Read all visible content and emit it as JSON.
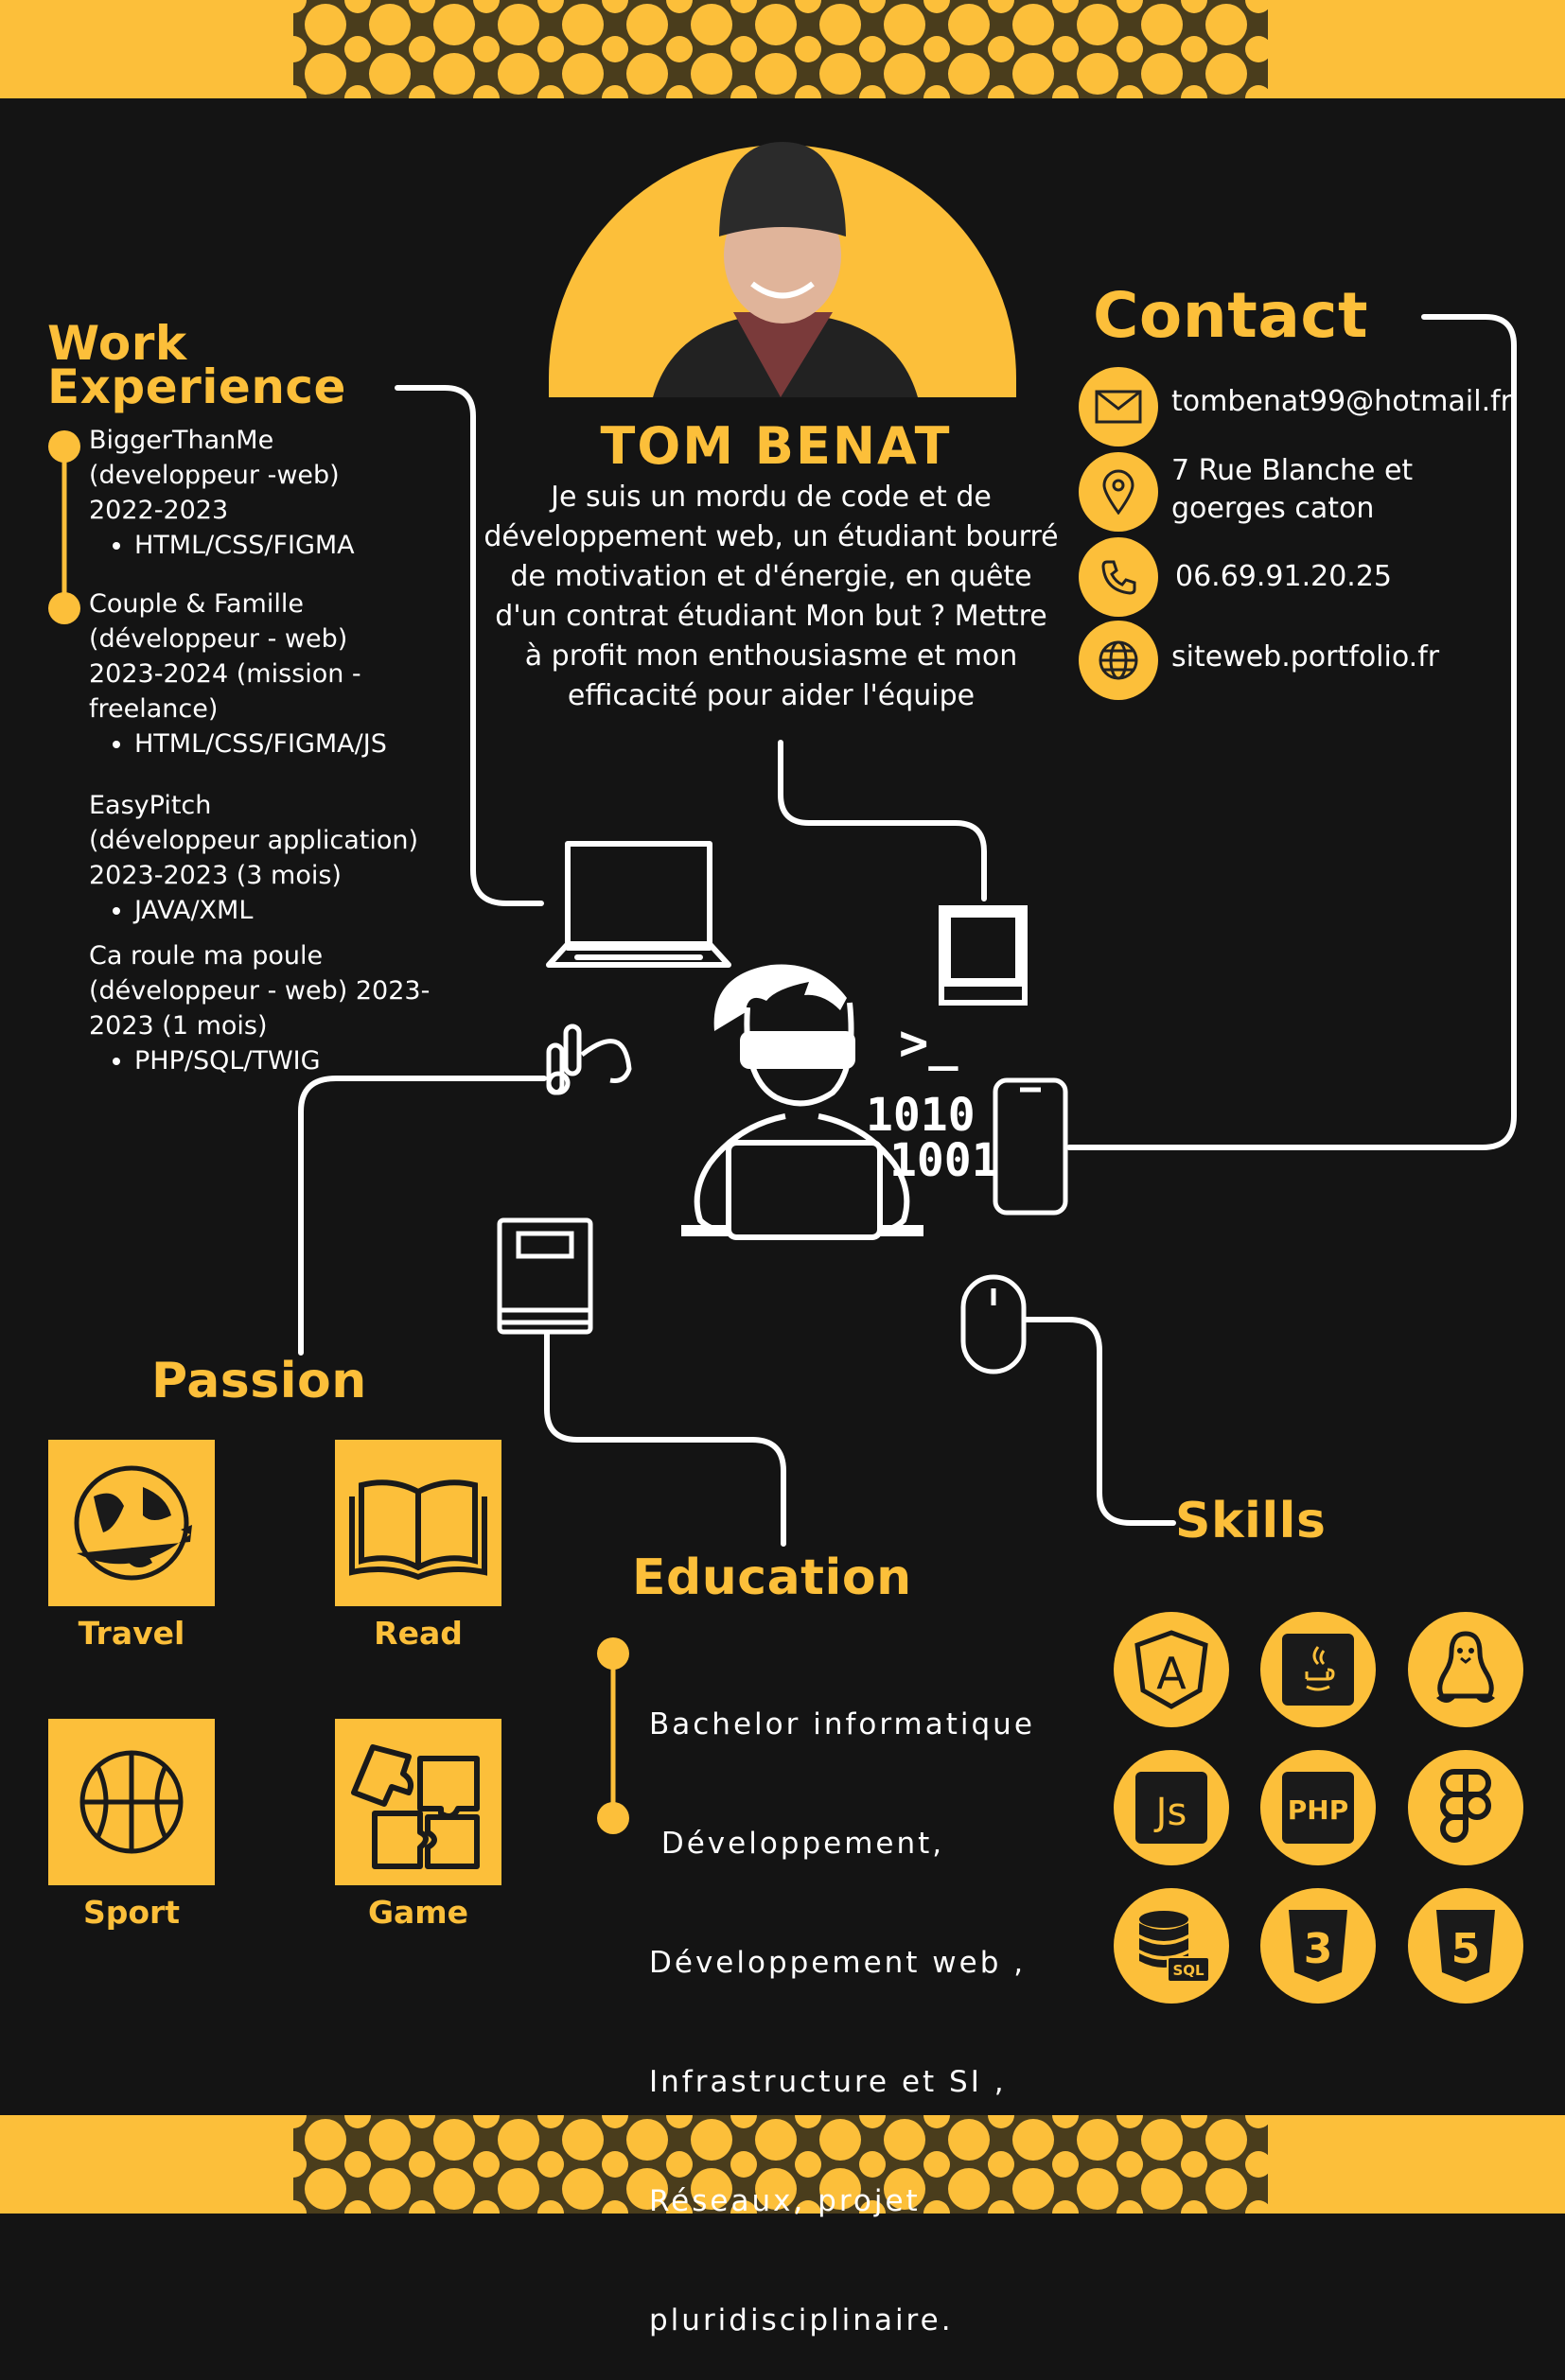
{
  "header": {
    "name": "TOM BENAT",
    "summary": "Je suis un mordu de code et de développement web, un étudiant bourré de motivation et d'énergie, en quête d'un contrat étudiant Mon but ? Mettre à profit mon enthousiasme et mon efficacité pour aider l'équipe"
  },
  "work": {
    "title_line1": "Work",
    "title_line2": "Experience",
    "items": [
      {
        "lines": [
          "BiggerThanMe",
          "(developpeur -web)",
          "2022-2023"
        ],
        "tech": "HTML/CSS/FIGMA"
      },
      {
        "lines": [
          "Couple & Famille",
          "(développeur - web)",
          "2023-2024 (mission -",
          "freelance)"
        ],
        "tech": "HTML/CSS/FIGMA/JS"
      },
      {
        "lines": [
          "EasyPitch",
          "(développeur application)",
          "2023-2023 (3 mois)"
        ],
        "tech": "JAVA/XML"
      },
      {
        "lines": [
          "Ca roule ma poule",
          "(développeur - web) 2023-",
          "2023 (1 mois)"
        ],
        "tech": "PHP/SQL/TWIG"
      }
    ]
  },
  "contact": {
    "title": "Contact",
    "email": "tombenat99@hotmail.fr",
    "address_line1": "7 Rue Blanche et",
    "address_line2": "goerges caton",
    "phone": "06.69.91.20.25",
    "website": "siteweb.portfolio.fr",
    "icons": [
      "envelope-icon",
      "location-pin-icon",
      "phone-icon",
      "globe-icon"
    ]
  },
  "illustration": {
    "code_1": "1010",
    "code_2": "1001",
    "prompt": ">_"
  },
  "passion": {
    "title": "Passion",
    "items": [
      {
        "label": "Travel",
        "icon": "globe-travel-icon"
      },
      {
        "label": "Read",
        "icon": "open-book-icon"
      },
      {
        "label": "Sport",
        "icon": "basketball-icon"
      },
      {
        "label": "Game",
        "icon": "puzzle-icon"
      }
    ]
  },
  "education": {
    "title": "Education",
    "lines": [
      "Bachelor informatique",
      " Développement,",
      "Développement web ,",
      "Infrastructure et SI ,",
      "Réseaux, projet",
      "pluridisciplinaire."
    ]
  },
  "skills": {
    "title": "Skills",
    "labels": {
      "js": "Js",
      "php": "PHP",
      "sql": "SQL",
      "css": "3",
      "html": "5",
      "angular": "A"
    },
    "icons": [
      "angular-icon",
      "java-icon",
      "linux-icon",
      "javascript-icon",
      "php-icon",
      "figma-icon",
      "sql-database-icon",
      "css3-icon",
      "html5-icon"
    ]
  },
  "colors": {
    "accent": "#fcbf3a",
    "background": "#141414",
    "text": "#ffffff"
  }
}
